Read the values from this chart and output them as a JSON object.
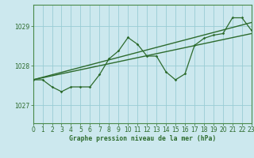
{
  "title": "Graphe pression niveau de la mer (hPa)",
  "bg_color": "#cce8ee",
  "grid_color": "#99ccd4",
  "line_color": "#2d6b2d",
  "spine_color": "#4a8a4a",
  "x_min": 0,
  "x_max": 23,
  "y_min": 1026.55,
  "y_max": 1029.55,
  "yticks": [
    1027,
    1028,
    1029
  ],
  "xticks": [
    0,
    1,
    2,
    3,
    4,
    5,
    6,
    7,
    8,
    9,
    10,
    11,
    12,
    13,
    14,
    15,
    16,
    17,
    18,
    19,
    20,
    21,
    22,
    23
  ],
  "series1": [
    [
      0,
      1027.65
    ],
    [
      1,
      1027.65
    ],
    [
      2,
      1027.47
    ],
    [
      3,
      1027.35
    ],
    [
      4,
      1027.47
    ],
    [
      5,
      1027.47
    ],
    [
      6,
      1027.47
    ],
    [
      7,
      1027.78
    ],
    [
      8,
      1028.18
    ],
    [
      9,
      1028.38
    ],
    [
      10,
      1028.72
    ],
    [
      11,
      1028.55
    ],
    [
      12,
      1028.25
    ],
    [
      13,
      1028.25
    ],
    [
      14,
      1027.85
    ],
    [
      15,
      1027.65
    ],
    [
      16,
      1027.8
    ],
    [
      17,
      1028.52
    ],
    [
      18,
      1028.7
    ],
    [
      19,
      1028.78
    ],
    [
      20,
      1028.82
    ],
    [
      21,
      1029.22
    ],
    [
      22,
      1029.22
    ],
    [
      23,
      1028.9
    ]
  ],
  "series2_trend": [
    [
      0,
      1027.65
    ],
    [
      23,
      1029.1
    ]
  ],
  "series3_trend": [
    [
      0,
      1027.65
    ],
    [
      23,
      1028.82
    ]
  ]
}
